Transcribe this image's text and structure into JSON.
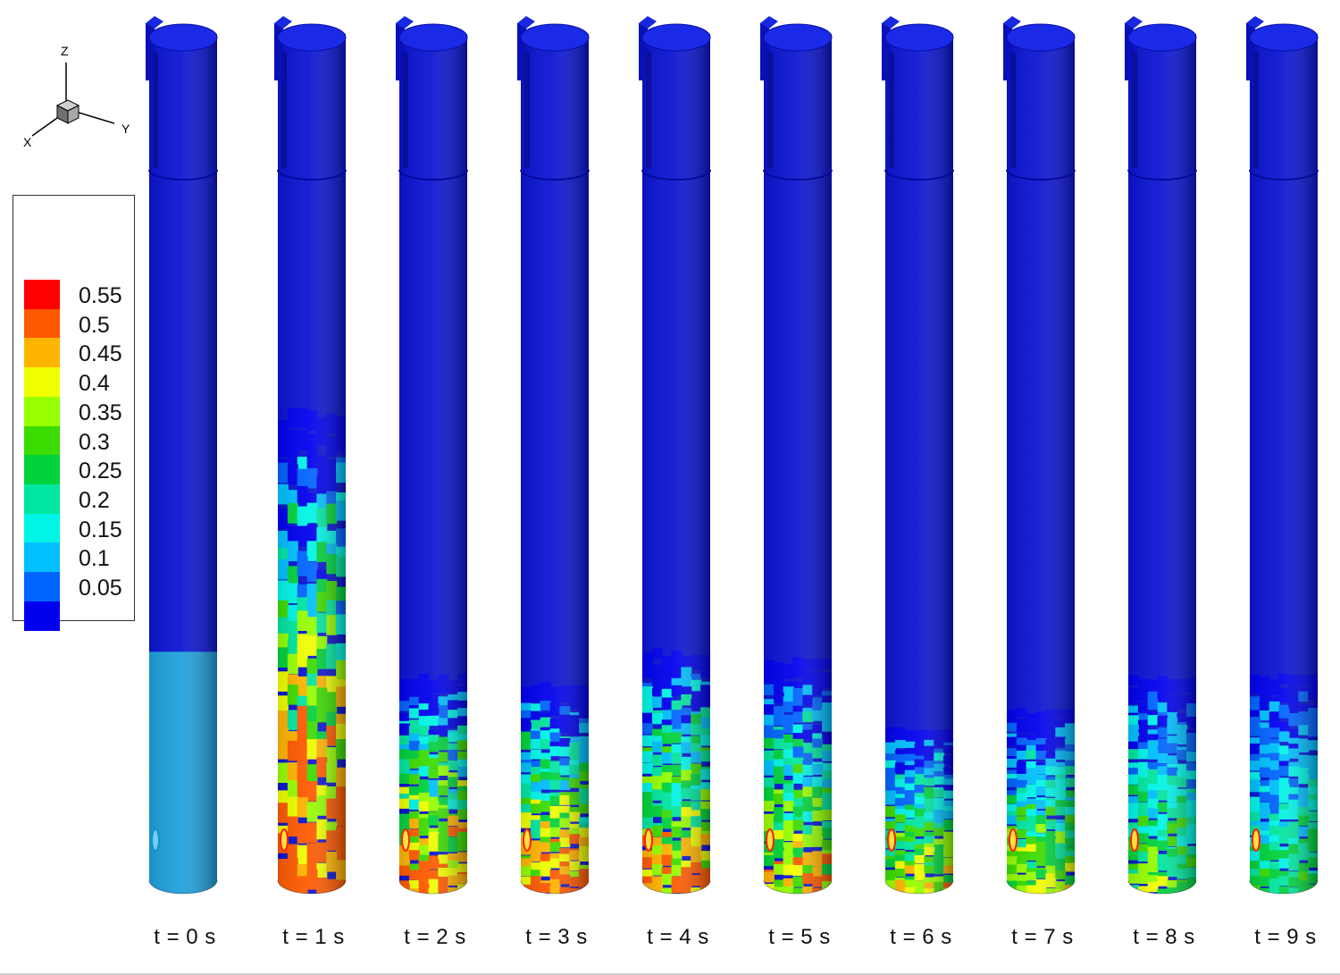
{
  "axes": {
    "x_label": "X",
    "y_label": "Y",
    "z_label": "Z"
  },
  "legend": {
    "levels": [
      {
        "label": "0.55",
        "color": "#ff0000"
      },
      {
        "label": "0.5",
        "color": "#ff5a00"
      },
      {
        "label": "0.45",
        "color": "#ffb400"
      },
      {
        "label": "0.4",
        "color": "#f0ff00"
      },
      {
        "label": "0.35",
        "color": "#96ff00"
      },
      {
        "label": "0.3",
        "color": "#3cdc00"
      },
      {
        "label": "0.25",
        "color": "#00d23c"
      },
      {
        "label": "0.2",
        "color": "#00e6a0"
      },
      {
        "label": "0.15",
        "color": "#00f5e6"
      },
      {
        "label": "0.1",
        "color": "#00c0ff"
      },
      {
        "label": "0.05",
        "color": "#0064ff"
      },
      {
        "label": "",
        "color": "#0000ee"
      }
    ]
  },
  "colors": {
    "background": "#0a14d2",
    "initial_bed": "#1ea0dc"
  },
  "columns": [
    {
      "label": "t = 0 s",
      "bed_height_fraction": 0.27,
      "mixing": 0.0
    },
    {
      "label": "t = 1 s",
      "bed_height_fraction": 0.55,
      "mixing": 1.0
    },
    {
      "label": "t = 2 s",
      "bed_height_fraction": 0.24,
      "mixing": 0.9
    },
    {
      "label": "t = 3 s",
      "bed_height_fraction": 0.23,
      "mixing": 0.85
    },
    {
      "label": "t = 4 s",
      "bed_height_fraction": 0.27,
      "mixing": 0.8
    },
    {
      "label": "t = 5 s",
      "bed_height_fraction": 0.26,
      "mixing": 0.75
    },
    {
      "label": "t = 6 s",
      "bed_height_fraction": 0.18,
      "mixing": 0.7
    },
    {
      "label": "t = 7 s",
      "bed_height_fraction": 0.2,
      "mixing": 0.65
    },
    {
      "label": "t = 8 s",
      "bed_height_fraction": 0.24,
      "mixing": 0.55
    },
    {
      "label": "t = 9 s",
      "bed_height_fraction": 0.24,
      "mixing": 0.45
    }
  ]
}
